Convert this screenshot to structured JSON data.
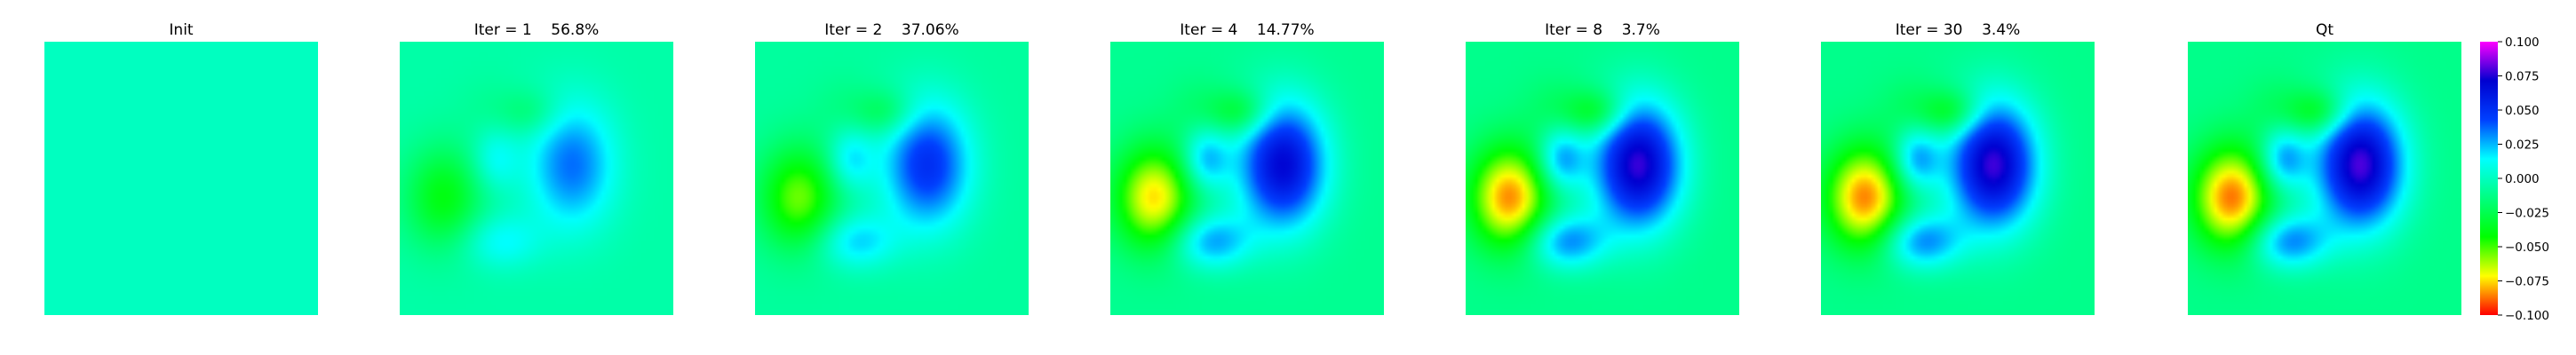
{
  "chart_data": {
    "type": "heatmap",
    "colormap": "hsv",
    "colormap_stops": [
      "#ff0000",
      "#ffff00",
      "#00ff00",
      "#00ff80",
      "#00ffff",
      "#0040ff",
      "#0000d0",
      "#ff00ff"
    ],
    "clim": [
      -0.1,
      0.1
    ],
    "colorbar_ticks": [
      "0.100",
      "0.075",
      "0.050",
      "0.025",
      "0.000",
      "−0.025",
      "−0.050",
      "−0.075",
      "−0.100"
    ],
    "panels": [
      {
        "title": "Init",
        "scale": 0.0
      },
      {
        "title": "Iter = 1    56.8%",
        "scale": 0.45
      },
      {
        "title": "Iter = 2    37.06%",
        "scale": 0.63
      },
      {
        "title": "Iter = 4    14.77%",
        "scale": 0.86
      },
      {
        "title": "Iter = 8    3.7%",
        "scale": 0.97
      },
      {
        "title": "Iter = 30    3.4%",
        "scale": 0.98
      },
      {
        "title": "Qt",
        "scale": 1.0
      }
    ],
    "field_components": [
      {
        "cx": 0.63,
        "cy": 0.45,
        "sx": 0.11,
        "sy": 0.16,
        "amp": 0.092
      },
      {
        "cx": 0.16,
        "cy": 0.57,
        "sx": 0.1,
        "sy": 0.13,
        "amp": -0.075
      },
      {
        "cx": 0.35,
        "cy": 0.43,
        "sx": 0.06,
        "sy": 0.08,
        "amp": 0.042
      },
      {
        "cx": 0.37,
        "cy": 0.73,
        "sx": 0.1,
        "sy": 0.07,
        "amp": 0.045
      },
      {
        "cx": 0.48,
        "cy": 0.26,
        "sx": 0.08,
        "sy": 0.06,
        "amp": -0.032
      },
      {
        "cx": 0.32,
        "cy": 0.24,
        "sx": 0.08,
        "sy": 0.08,
        "amp": -0.008
      }
    ],
    "baseline": -0.012
  }
}
